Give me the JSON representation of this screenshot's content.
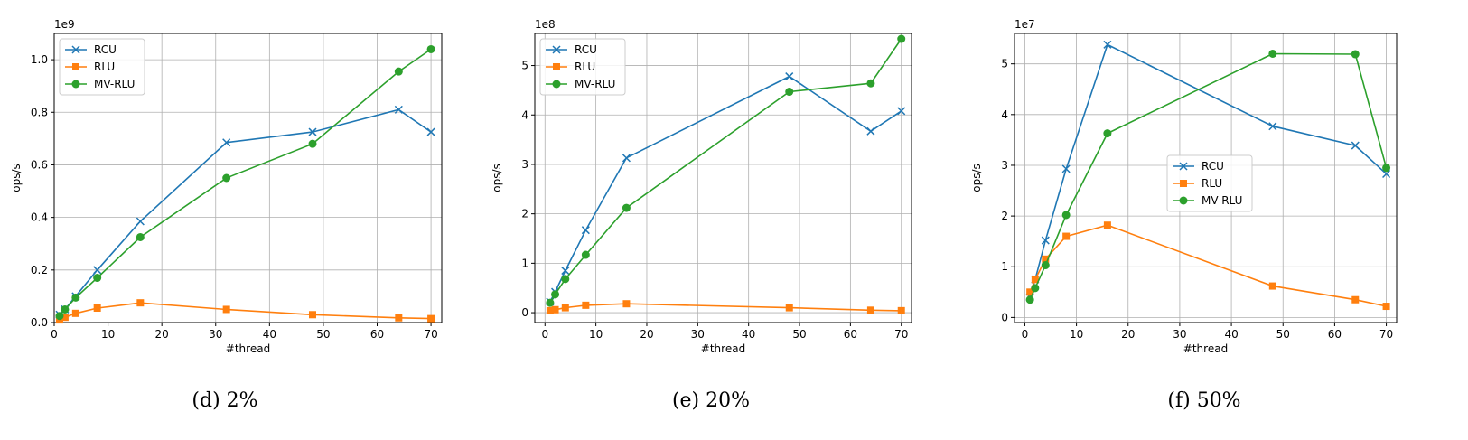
{
  "colors": {
    "RCU": "#1f77b4",
    "RLU": "#ff7f0e",
    "MV-RLU": "#2ca02c",
    "grid": "#b0b0b0"
  },
  "chart_data": [
    {
      "type": "line",
      "caption": "(d)  2%",
      "xlabel": "#thread",
      "ylabel": "ops/s",
      "y_scale_label": "1e9",
      "xlim": [
        0,
        72
      ],
      "ylim": [
        0,
        1.1
      ],
      "x_ticks": [
        0,
        10,
        20,
        30,
        40,
        50,
        60,
        70
      ],
      "y_ticks": [
        0.0,
        0.2,
        0.4,
        0.6,
        0.8,
        1.0
      ],
      "y_tick_labels": [
        "0.0",
        "0.2",
        "0.4",
        "0.6",
        "0.8",
        "1.0"
      ],
      "grid": true,
      "legend_position": "top-left",
      "series": [
        {
          "name": "RCU",
          "marker": "x",
          "x": [
            1,
            2,
            4,
            8,
            16,
            32,
            48,
            64,
            70
          ],
          "values": [
            0.03,
            0.05,
            0.1,
            0.2,
            0.385,
            0.685,
            0.725,
            0.81,
            0.725
          ]
        },
        {
          "name": "RLU",
          "marker": "square",
          "x": [
            1,
            2,
            4,
            8,
            16,
            32,
            48,
            64,
            70
          ],
          "values": [
            0.01,
            0.02,
            0.035,
            0.055,
            0.075,
            0.05,
            0.03,
            0.018,
            0.015
          ]
        },
        {
          "name": "MV-RLU",
          "marker": "circle",
          "x": [
            1,
            2,
            4,
            8,
            16,
            32,
            48,
            64,
            70
          ],
          "values": [
            0.025,
            0.05,
            0.095,
            0.17,
            0.325,
            0.55,
            0.68,
            0.955,
            1.04
          ]
        }
      ]
    },
    {
      "type": "line",
      "caption": "(e)  20%",
      "xlabel": "#thread",
      "ylabel": "ops/s",
      "y_scale_label": "1e8",
      "xlim": [
        -2,
        72
      ],
      "ylim": [
        -0.2,
        5.65
      ],
      "x_ticks": [
        0,
        10,
        20,
        30,
        40,
        50,
        60,
        70
      ],
      "y_ticks": [
        0,
        1,
        2,
        3,
        4,
        5
      ],
      "y_tick_labels": [
        "0",
        "1",
        "2",
        "3",
        "4",
        "5"
      ],
      "grid": true,
      "legend_position": "top-left",
      "series": [
        {
          "name": "RCU",
          "marker": "x",
          "x": [
            1,
            2,
            4,
            8,
            16,
            48,
            64,
            70
          ],
          "values": [
            0.22,
            0.42,
            0.85,
            1.67,
            3.13,
            4.78,
            3.67,
            4.08
          ]
        },
        {
          "name": "RLU",
          "marker": "square",
          "x": [
            1,
            2,
            4,
            8,
            16,
            48,
            64,
            70
          ],
          "values": [
            0.04,
            0.06,
            0.1,
            0.15,
            0.18,
            0.1,
            0.05,
            0.04
          ]
        },
        {
          "name": "MV-RLU",
          "marker": "circle",
          "x": [
            1,
            2,
            4,
            8,
            16,
            48,
            64,
            70
          ],
          "values": [
            0.2,
            0.37,
            0.68,
            1.17,
            2.12,
            4.47,
            4.64,
            5.54
          ]
        }
      ]
    },
    {
      "type": "line",
      "caption": "(f)  50%",
      "xlabel": "#thread",
      "ylabel": "ops/s",
      "y_scale_label": "1e7",
      "xlim": [
        -2,
        72
      ],
      "ylim": [
        -0.1,
        5.6
      ],
      "x_ticks": [
        0,
        10,
        20,
        30,
        40,
        50,
        60,
        70
      ],
      "y_ticks": [
        0,
        1,
        2,
        3,
        4,
        5
      ],
      "y_tick_labels": [
        "0",
        "1",
        "2",
        "3",
        "4",
        "5"
      ],
      "grid": true,
      "legend_position": "center-right",
      "series": [
        {
          "name": "RCU",
          "marker": "x",
          "x": [
            1,
            2,
            4,
            8,
            16,
            48,
            64,
            70
          ],
          "values": [
            0.4,
            0.75,
            1.52,
            2.93,
            5.38,
            3.77,
            3.39,
            2.83
          ]
        },
        {
          "name": "RLU",
          "marker": "square",
          "x": [
            1,
            2,
            4,
            8,
            16,
            48,
            64,
            70
          ],
          "values": [
            0.5,
            0.75,
            1.15,
            1.6,
            1.82,
            0.62,
            0.35,
            0.22
          ]
        },
        {
          "name": "MV-RLU",
          "marker": "circle",
          "x": [
            1,
            2,
            4,
            8,
            16,
            48,
            64,
            70
          ],
          "values": [
            0.35,
            0.58,
            1.03,
            2.02,
            3.63,
            5.2,
            5.19,
            2.95
          ]
        }
      ]
    }
  ]
}
